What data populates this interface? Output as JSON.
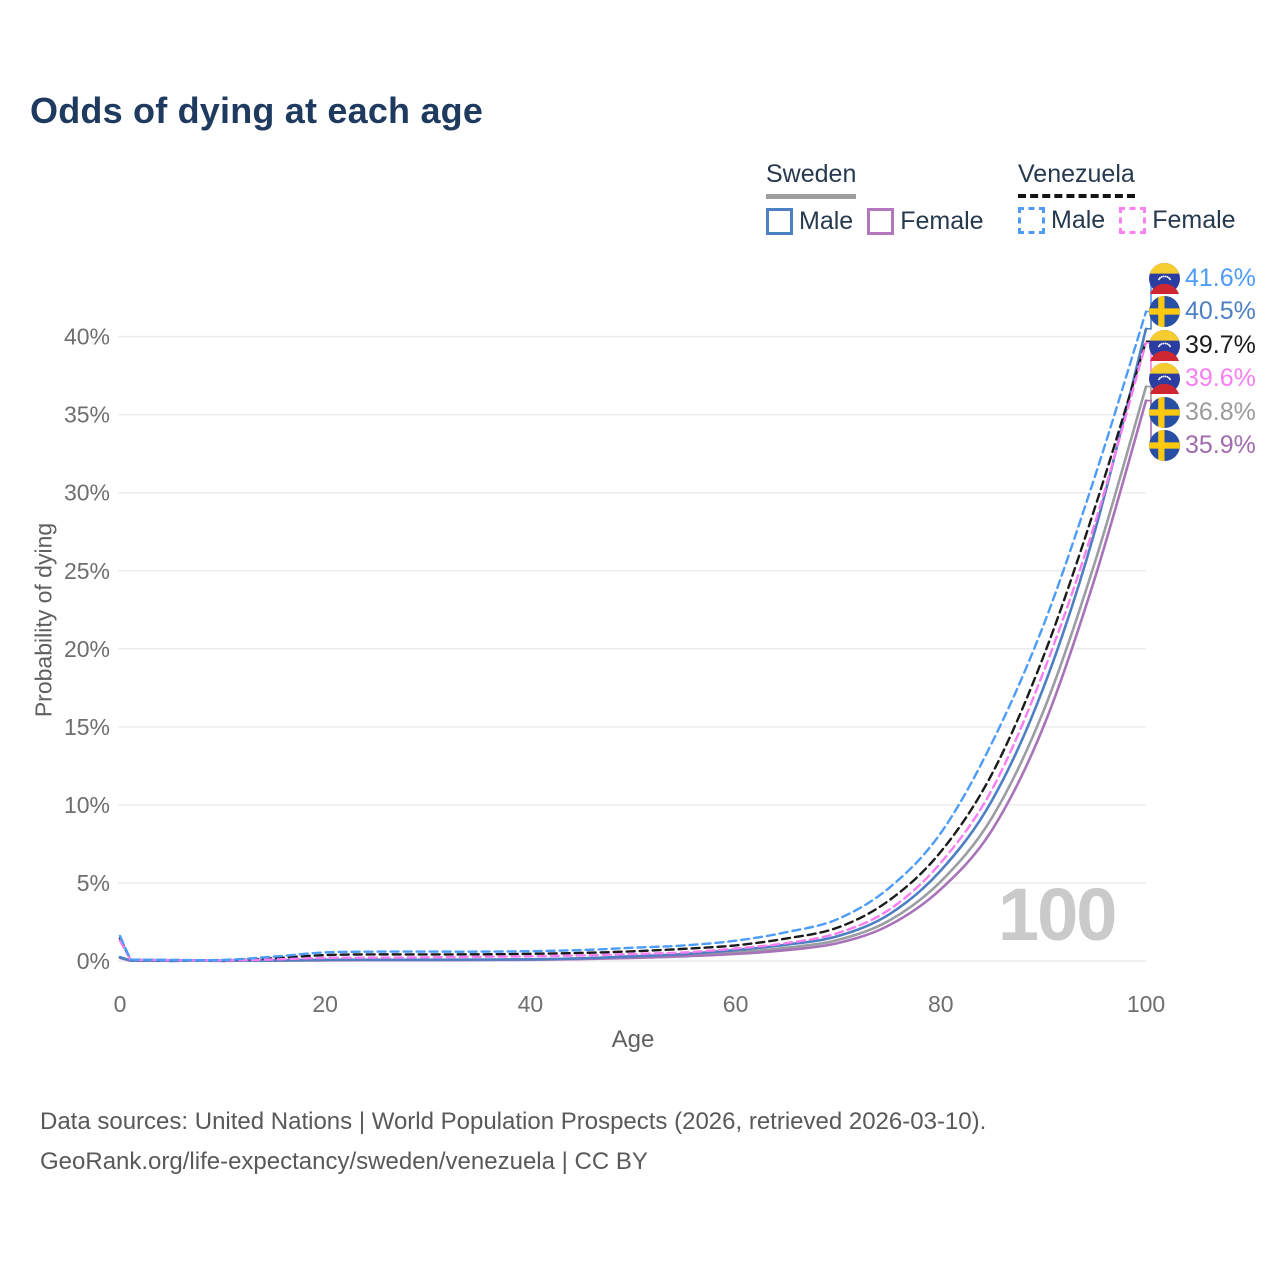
{
  "title": "Odds of dying at each age",
  "legend": {
    "groups": [
      {
        "country": "Sweden",
        "line_style": "solid",
        "underline_color": "#9e9e9e",
        "items": [
          {
            "label": "Male",
            "color": "#4d7fc3"
          },
          {
            "label": "Female",
            "color": "#b277bd"
          }
        ]
      },
      {
        "country": "Venezuela",
        "line_style": "dashed",
        "underline_color": "#141414",
        "items": [
          {
            "label": "Male",
            "color": "#4c9cf8"
          },
          {
            "label": "Female",
            "color": "#fb80f4"
          }
        ]
      }
    ]
  },
  "chart_data": {
    "type": "line",
    "title": "Odds of dying at each age",
    "xlabel": "Age",
    "ylabel": "Probability of dying",
    "xlim": [
      0,
      100
    ],
    "ylim_pct": [
      0,
      42
    ],
    "x_ticks": [
      0,
      20,
      40,
      60,
      80,
      100
    ],
    "y_ticks_pct": [
      0,
      5,
      10,
      15,
      20,
      25,
      30,
      35,
      40
    ],
    "grid": true,
    "legend_position": "top-right",
    "x": [
      0,
      1,
      2,
      5,
      10,
      15,
      20,
      25,
      30,
      35,
      40,
      45,
      50,
      55,
      60,
      65,
      70,
      75,
      80,
      85,
      90,
      95,
      100
    ],
    "series": [
      {
        "id": "se-both",
        "name": "Sweden Both",
        "country": "Sweden",
        "sex": "Both",
        "color": "#9a9da1",
        "dashed": false,
        "values_pct": [
          0.22,
          0.03,
          0.02,
          0.01,
          0.01,
          0.03,
          0.06,
          0.06,
          0.07,
          0.08,
          0.09,
          0.14,
          0.25,
          0.37,
          0.55,
          0.85,
          1.35,
          2.6,
          5.1,
          9.2,
          16.0,
          25.5,
          36.8
        ]
      },
      {
        "id": "se-female",
        "name": "Sweden Female",
        "country": "Sweden",
        "sex": "Female",
        "color": "#a873b8",
        "dashed": false,
        "values_pct": [
          0.2,
          0.02,
          0.02,
          0.01,
          0.01,
          0.02,
          0.04,
          0.05,
          0.05,
          0.06,
          0.08,
          0.12,
          0.2,
          0.3,
          0.45,
          0.7,
          1.15,
          2.3,
          4.6,
          8.4,
          15.0,
          24.5,
          35.9
        ]
      },
      {
        "id": "se-male",
        "name": "Sweden Male",
        "country": "Sweden",
        "sex": "Male",
        "color": "#4d7fc3",
        "dashed": false,
        "values_pct": [
          0.25,
          0.03,
          0.02,
          0.01,
          0.01,
          0.04,
          0.08,
          0.08,
          0.08,
          0.09,
          0.11,
          0.17,
          0.3,
          0.45,
          0.7,
          1.05,
          1.6,
          3.0,
          5.8,
          10.3,
          17.5,
          27.5,
          40.5
        ]
      },
      {
        "id": "ve-both",
        "name": "Venezuela Both",
        "country": "Venezuela",
        "sex": "Both",
        "color": "#1b1b1b",
        "dashed": true,
        "values_pct": [
          1.45,
          0.1,
          0.08,
          0.06,
          0.05,
          0.18,
          0.38,
          0.42,
          0.42,
          0.43,
          0.46,
          0.52,
          0.62,
          0.78,
          1.0,
          1.45,
          2.15,
          3.9,
          7.0,
          12.0,
          19.5,
          29.0,
          39.7
        ]
      },
      {
        "id": "ve-female",
        "name": "Venezuela Female",
        "country": "Venezuela",
        "sex": "Female",
        "color": "#f97ef2",
        "dashed": true,
        "values_pct": [
          1.3,
          0.09,
          0.07,
          0.05,
          0.04,
          0.1,
          0.2,
          0.22,
          0.24,
          0.27,
          0.3,
          0.36,
          0.45,
          0.55,
          0.8,
          1.15,
          1.8,
          3.3,
          6.3,
          11.0,
          18.5,
          28.0,
          39.6
        ]
      },
      {
        "id": "ve-male",
        "name": "Venezuela Male",
        "country": "Venezuela",
        "sex": "Male",
        "color": "#4c9cf8",
        "dashed": true,
        "values_pct": [
          1.6,
          0.12,
          0.09,
          0.07,
          0.07,
          0.28,
          0.55,
          0.6,
          0.6,
          0.6,
          0.63,
          0.7,
          0.85,
          1.0,
          1.3,
          1.85,
          2.7,
          4.7,
          8.2,
          14.0,
          21.5,
          31.0,
          41.6
        ]
      }
    ]
  },
  "end_labels": [
    {
      "flag": "venezuela",
      "series": "ve-male",
      "end_value_pct": 41.6,
      "text": "41.6%",
      "color": "#4c9cf8"
    },
    {
      "flag": "sweden",
      "series": "se-male",
      "end_value_pct": 40.5,
      "text": "40.5%",
      "color": "#4d7fc3"
    },
    {
      "flag": "venezuela",
      "series": "ve-both",
      "end_value_pct": 39.7,
      "text": "39.7%",
      "color": "#1b1b1b"
    },
    {
      "flag": "venezuela",
      "series": "ve-female",
      "end_value_pct": 39.6,
      "text": "39.6%",
      "color": "#f97ef2"
    },
    {
      "flag": "sweden",
      "series": "se-both",
      "end_value_pct": 36.8,
      "text": "36.8%",
      "color": "#9b9b9b"
    },
    {
      "flag": "sweden",
      "series": "se-female",
      "end_value_pct": 35.9,
      "text": "35.9%",
      "color": "#a16cae"
    }
  ],
  "watermark": "100",
  "footer": {
    "line1": "Data sources: United Nations | World Population Prospects (2026, retrieved 2026-03-10).",
    "line2": "GeoRank.org/life-expectancy/sweden/venezuela | CC BY"
  },
  "colors": {
    "title": "#1e3a5f",
    "axis_text": "#6e6e6e",
    "grid": "#ececec",
    "watermark": "#cacaca",
    "footer_text": "#595959",
    "sweden_flag_blue": "#2750a4",
    "sweden_flag_yellow": "#fdc810",
    "venezuela_flag_yellow": "#f6cd31",
    "venezuela_flag_blue": "#2b3da0",
    "venezuela_flag_red": "#cf2731"
  }
}
